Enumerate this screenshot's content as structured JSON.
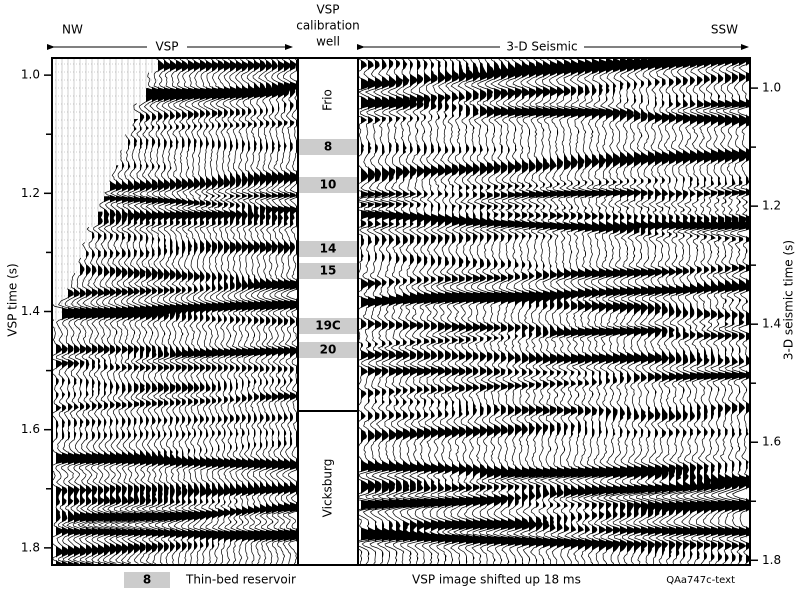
{
  "header": {
    "left": "NW",
    "right": "SSW",
    "vsp_label": "VSP",
    "seismic_label": "3-D Seismic",
    "well_title": [
      "VSP",
      "calibration",
      "well"
    ]
  },
  "left_axis": {
    "label": "VSP time (s)",
    "ylim": [
      0.971,
      1.829
    ],
    "yticks": [
      {
        "value": 1,
        "label": "1.0"
      },
      1.2,
      1.4,
      1.6,
      1.8
    ],
    "minor_ticks": [
      1.1,
      1.3,
      1.5,
      1.7
    ]
  },
  "right_axis": {
    "label": "3-D seismic time (s)",
    "ylim": [
      0.949,
      1.808
    ],
    "yticks": [
      {
        "value": 1,
        "label": "1.0"
      },
      1.2,
      1.4,
      1.6,
      1.8
    ],
    "minor_ticks": [
      1.1,
      1.3,
      1.5,
      1.7
    ]
  },
  "well": {
    "zones": [
      "Frio",
      "Vicksburg"
    ],
    "horizons": [
      "8",
      "10",
      "14",
      "15",
      "19C",
      "20"
    ]
  },
  "footer": {
    "legend_swatch": "8",
    "legend_text": "Thin-bed reservoir",
    "note": "VSP image shifted up 18 ms",
    "code": "QAa747c-text"
  }
}
